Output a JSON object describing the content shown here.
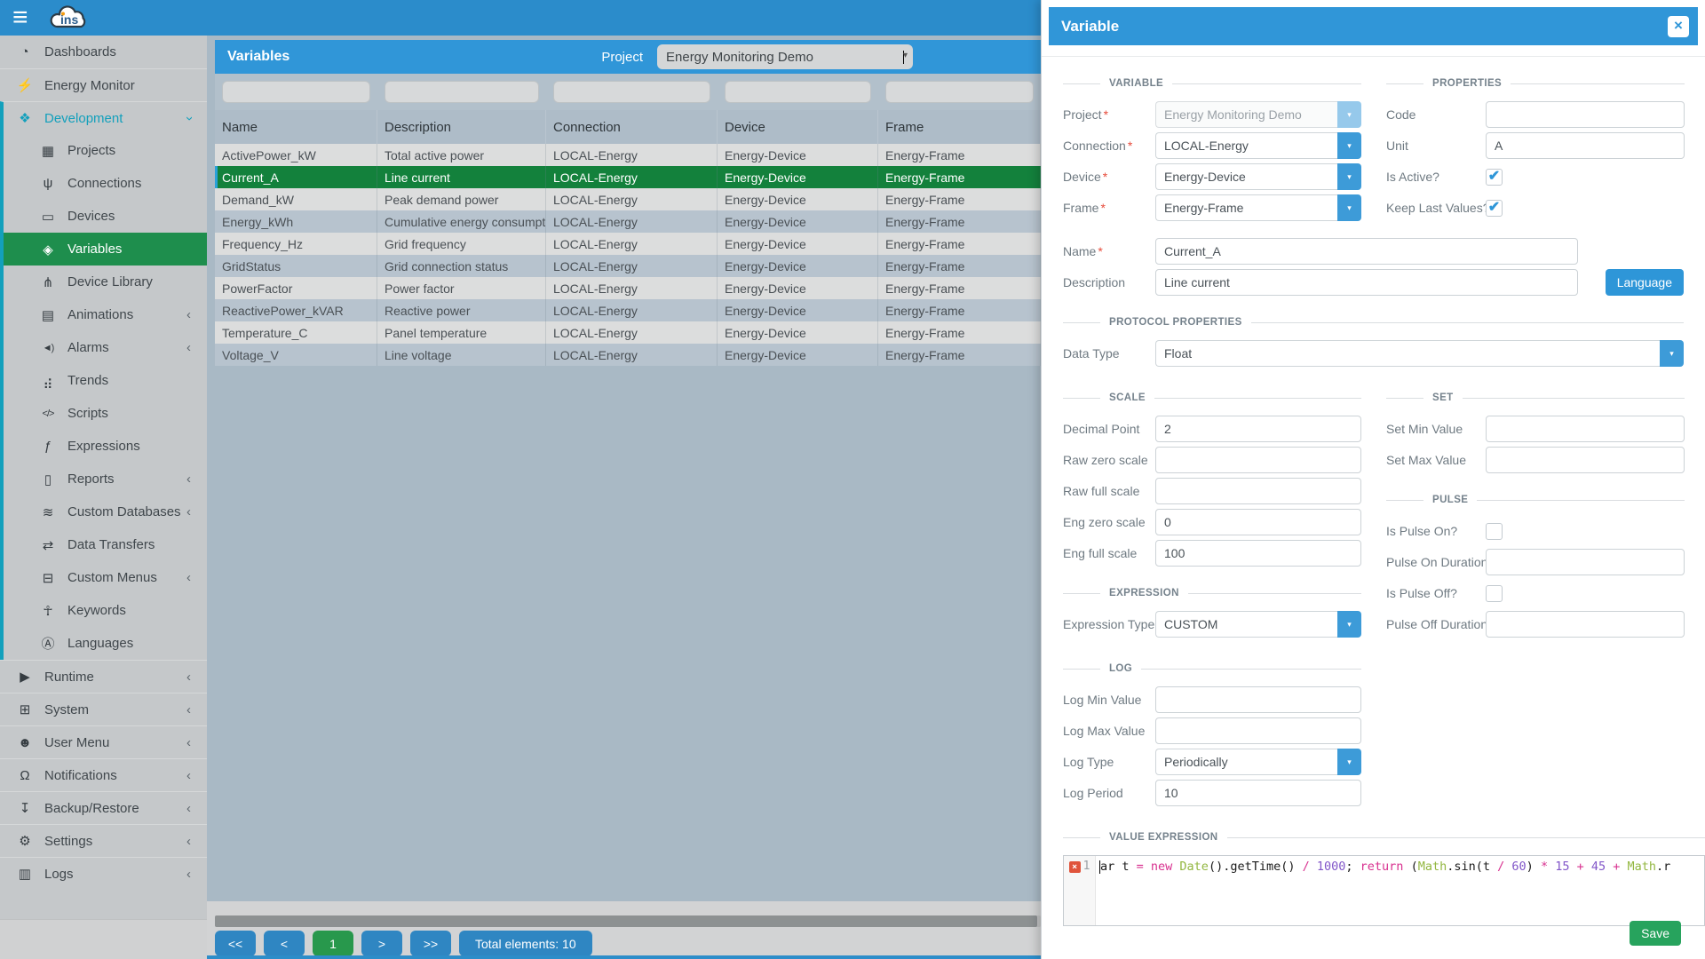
{
  "colors": {
    "topbar_blue": "#2b8ccb",
    "panel_header_blue": "#3096d8",
    "selected_row_green": "#13813c",
    "sidebar_selected_green": "#1e8e4d",
    "development_teal": "#13a0bc",
    "pagination_blue": "#2f86c2",
    "pagination_current_green": "#28984c",
    "save_green": "#27a35d"
  },
  "topbar": {
    "logo_text": "ins",
    "hamburger_icon": "menu-icon"
  },
  "sidebar": {
    "items": [
      {
        "label": "Dashboards",
        "icon": "dashboard-icon",
        "level": "top"
      },
      {
        "label": "Energy Monitor",
        "icon": "energy-monitor-icon",
        "level": "top"
      },
      {
        "label": "Development",
        "icon": "development-icon",
        "level": "top",
        "dev_scope": true,
        "active": true,
        "chevron": "down"
      },
      {
        "label": "Projects",
        "icon": "projects-icon",
        "level": "child",
        "dev_scope": true
      },
      {
        "label": "Connections",
        "icon": "connections-icon",
        "level": "child",
        "dev_scope": true
      },
      {
        "label": "Devices",
        "icon": "devices-icon",
        "level": "child",
        "dev_scope": true
      },
      {
        "label": "Variables",
        "icon": "variables-icon",
        "level": "child",
        "dev_scope": true,
        "selected": true
      },
      {
        "label": "Device Library",
        "icon": "device-library-icon",
        "level": "child",
        "dev_scope": true
      },
      {
        "label": "Animations",
        "icon": "animations-icon",
        "level": "child",
        "dev_scope": true,
        "chevron": "left"
      },
      {
        "label": "Alarms",
        "icon": "alarms-icon",
        "level": "child",
        "dev_scope": true,
        "chevron": "left"
      },
      {
        "label": "Trends",
        "icon": "trends-icon",
        "level": "child",
        "dev_scope": true
      },
      {
        "label": "Scripts",
        "icon": "scripts-icon",
        "level": "child",
        "dev_scope": true
      },
      {
        "label": "Expressions",
        "icon": "expressions-icon",
        "level": "child",
        "dev_scope": true
      },
      {
        "label": "Reports",
        "icon": "reports-icon",
        "level": "child",
        "dev_scope": true,
        "chevron": "left"
      },
      {
        "label": "Custom Databases",
        "icon": "custom-databases-icon",
        "level": "child",
        "dev_scope": true,
        "chevron": "left"
      },
      {
        "label": "Data Transfers",
        "icon": "data-transfers-icon",
        "level": "child",
        "dev_scope": true
      },
      {
        "label": "Custom Menus",
        "icon": "custom-menus-icon",
        "level": "child",
        "dev_scope": true,
        "chevron": "left"
      },
      {
        "label": "Keywords",
        "icon": "keywords-icon",
        "level": "child",
        "dev_scope": true
      },
      {
        "label": "Languages",
        "icon": "languages-icon",
        "level": "child",
        "dev_scope": true
      },
      {
        "label": "Runtime",
        "icon": "runtime-icon",
        "level": "top",
        "chevron": "left"
      },
      {
        "label": "System",
        "icon": "system-icon",
        "level": "top",
        "chevron": "left"
      },
      {
        "label": "User Menu",
        "icon": "user-menu-icon",
        "level": "top",
        "chevron": "left"
      },
      {
        "label": "Notifications",
        "icon": "notifications-icon",
        "level": "top",
        "chevron": "left"
      },
      {
        "label": "Backup/Restore",
        "icon": "backup-restore-icon",
        "level": "top",
        "chevron": "left"
      },
      {
        "label": "Settings",
        "icon": "settings-icon",
        "level": "top",
        "chevron": "left"
      },
      {
        "label": "Logs",
        "icon": "logs-icon",
        "level": "top",
        "chevron": "left"
      }
    ]
  },
  "variables_panel": {
    "title": "Variables",
    "project_label": "Project",
    "project_value": "Energy Monitoring Demo"
  },
  "table": {
    "columns": [
      "Name",
      "Description",
      "Connection",
      "Device",
      "Frame"
    ],
    "selected_index": 1,
    "rows": [
      [
        "ActivePower_kW",
        "Total active power",
        "LOCAL-Energy",
        "Energy-Device",
        "Energy-Frame"
      ],
      [
        "Current_A",
        "Line current",
        "LOCAL-Energy",
        "Energy-Device",
        "Energy-Frame"
      ],
      [
        "Demand_kW",
        "Peak demand power",
        "LOCAL-Energy",
        "Energy-Device",
        "Energy-Frame"
      ],
      [
        "Energy_kWh",
        "Cumulative energy consumption",
        "LOCAL-Energy",
        "Energy-Device",
        "Energy-Frame"
      ],
      [
        "Frequency_Hz",
        "Grid frequency",
        "LOCAL-Energy",
        "Energy-Device",
        "Energy-Frame"
      ],
      [
        "GridStatus",
        "Grid connection status",
        "LOCAL-Energy",
        "Energy-Device",
        "Energy-Frame"
      ],
      [
        "PowerFactor",
        "Power factor",
        "LOCAL-Energy",
        "Energy-Device",
        "Energy-Frame"
      ],
      [
        "ReactivePower_kVAR",
        "Reactive power",
        "LOCAL-Energy",
        "Energy-Device",
        "Energy-Frame"
      ],
      [
        "Temperature_C",
        "Panel temperature",
        "LOCAL-Energy",
        "Energy-Device",
        "Energy-Frame"
      ],
      [
        "Voltage_V",
        "Line voltage",
        "LOCAL-Energy",
        "Energy-Device",
        "Energy-Frame"
      ]
    ]
  },
  "pagination": {
    "first": "<<",
    "prev": "<",
    "page": "1",
    "next": ">",
    "last": ">>",
    "total": "Total elements: 10"
  },
  "drawer": {
    "title": "Variable",
    "close_icon": "close-icon",
    "required_marker": "*",
    "sections": {
      "variable": "VARIABLE",
      "properties": "PROPERTIES",
      "protocol": "PROTOCOL PROPERTIES",
      "scale": "SCALE",
      "set": "SET",
      "pulse": "PULSE",
      "expression": "EXPRESSION",
      "log": "LOG",
      "value_expression": "VALUE EXPRESSION"
    },
    "fields": {
      "project": {
        "label": "Project",
        "value": "Energy Monitoring Demo",
        "required": true,
        "disabled": true
      },
      "connection": {
        "label": "Connection",
        "value": "LOCAL-Energy",
        "required": true
      },
      "device": {
        "label": "Device",
        "value": "Energy-Device",
        "required": true
      },
      "frame": {
        "label": "Frame",
        "value": "Energy-Frame",
        "required": true
      },
      "name": {
        "label": "Name",
        "value": "Current_A",
        "required": true
      },
      "description": {
        "label": "Description",
        "value": "Line current"
      },
      "code": {
        "label": "Code",
        "value": ""
      },
      "unit": {
        "label": "Unit",
        "value": "A"
      },
      "is_active": {
        "label": "Is Active?",
        "checked": true
      },
      "keep_last": {
        "label": "Keep Last Values?",
        "checked": true
      },
      "data_type": {
        "label": "Data Type",
        "value": "Float"
      },
      "decimal_point": {
        "label": "Decimal Point",
        "value": "2"
      },
      "raw_zero": {
        "label": "Raw zero scale",
        "value": ""
      },
      "raw_full": {
        "label": "Raw full scale",
        "value": ""
      },
      "eng_zero": {
        "label": "Eng zero scale",
        "value": "0"
      },
      "eng_full": {
        "label": "Eng full scale",
        "value": "100"
      },
      "set_min": {
        "label": "Set Min Value",
        "value": ""
      },
      "set_max": {
        "label": "Set Max Value",
        "value": ""
      },
      "is_pulse_on": {
        "label": "Is Pulse On?",
        "checked": false
      },
      "pulse_on_dur": {
        "label": "Pulse On Duration",
        "value": ""
      },
      "is_pulse_off": {
        "label": "Is Pulse Off?",
        "checked": false
      },
      "pulse_off_dur": {
        "label": "Pulse Off Duration",
        "value": ""
      },
      "expression_type": {
        "label": "Expression Type",
        "value": "CUSTOM"
      },
      "log_min": {
        "label": "Log Min Value",
        "value": ""
      },
      "log_max": {
        "label": "Log Max Value",
        "value": ""
      },
      "log_type": {
        "label": "Log Type",
        "value": "Periodically"
      },
      "log_period": {
        "label": "Log Period",
        "value": "10"
      }
    },
    "language_button": "Language",
    "save_button": "Save",
    "editor": {
      "line_number": "1",
      "error_icon": "error-icon",
      "tokens": [
        {
          "t": "ar t ",
          "c": "p"
        },
        {
          "t": "= ",
          "c": "o"
        },
        {
          "t": "new ",
          "c": "k"
        },
        {
          "t": "Date",
          "c": "g"
        },
        {
          "t": "().",
          "c": "p"
        },
        {
          "t": "getTime",
          "c": "p"
        },
        {
          "t": "() ",
          "c": "p"
        },
        {
          "t": "/ ",
          "c": "o"
        },
        {
          "t": "1000",
          "c": "n"
        },
        {
          "t": "; ",
          "c": "p"
        },
        {
          "t": "return ",
          "c": "k"
        },
        {
          "t": "(",
          "c": "p"
        },
        {
          "t": "Math",
          "c": "g"
        },
        {
          "t": ".sin(t ",
          "c": "p"
        },
        {
          "t": "/ ",
          "c": "o"
        },
        {
          "t": "60",
          "c": "n"
        },
        {
          "t": ") ",
          "c": "p"
        },
        {
          "t": "* ",
          "c": "o"
        },
        {
          "t": "15 ",
          "c": "n"
        },
        {
          "t": "+ ",
          "c": "o"
        },
        {
          "t": "45 ",
          "c": "n"
        },
        {
          "t": "+ ",
          "c": "o"
        },
        {
          "t": "Math",
          "c": "g"
        },
        {
          "t": ".r",
          "c": "p"
        }
      ]
    }
  }
}
